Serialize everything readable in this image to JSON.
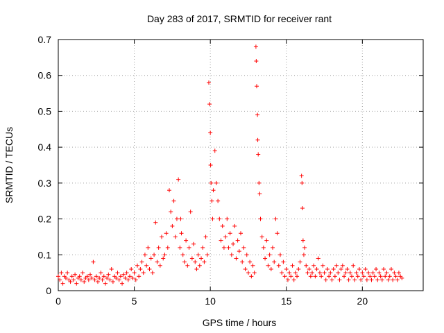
{
  "chart_data": {
    "type": "scatter",
    "title": "Day 283 of 2017, SRMTID for receiver rant",
    "xlabel": "GPS time / hours",
    "ylabel": "SRMTID / TECUs",
    "xlim": [
      0,
      24
    ],
    "ylim": [
      0,
      0.7
    ],
    "xticks": [
      0,
      5,
      10,
      15,
      20
    ],
    "yticks": [
      0,
      0.1,
      0.2,
      0.3,
      0.4,
      0.5,
      0.6,
      0.7
    ],
    "xtick_labels": [
      "0",
      "5",
      "10",
      "15",
      "20"
    ],
    "ytick_labels": [
      "0",
      "0.1",
      "0.2",
      "0.3",
      "0.4",
      "0.5",
      "0.6",
      "0.7"
    ],
    "grid": true,
    "marker": "+",
    "color": "#ff0000",
    "series": [
      {
        "name": "SRMTID",
        "points": [
          [
            0.0,
            0.04
          ],
          [
            0.1,
            0.03
          ],
          [
            0.2,
            0.05
          ],
          [
            0.3,
            0.02
          ],
          [
            0.4,
            0.04
          ],
          [
            0.5,
            0.035
          ],
          [
            0.6,
            0.05
          ],
          [
            0.7,
            0.03
          ],
          [
            0.8,
            0.025
          ],
          [
            0.9,
            0.04
          ],
          [
            1.0,
            0.03
          ],
          [
            1.1,
            0.045
          ],
          [
            1.2,
            0.02
          ],
          [
            1.3,
            0.035
          ],
          [
            1.4,
            0.04
          ],
          [
            1.5,
            0.03
          ],
          [
            1.6,
            0.05
          ],
          [
            1.7,
            0.025
          ],
          [
            1.8,
            0.035
          ],
          [
            1.9,
            0.04
          ],
          [
            2.0,
            0.03
          ],
          [
            2.1,
            0.045
          ],
          [
            2.2,
            0.035
          ],
          [
            2.3,
            0.08
          ],
          [
            2.4,
            0.03
          ],
          [
            2.5,
            0.04
          ],
          [
            2.6,
            0.025
          ],
          [
            2.7,
            0.035
          ],
          [
            2.8,
            0.05
          ],
          [
            2.9,
            0.03
          ],
          [
            3.0,
            0.04
          ],
          [
            3.1,
            0.02
          ],
          [
            3.2,
            0.035
          ],
          [
            3.3,
            0.045
          ],
          [
            3.4,
            0.03
          ],
          [
            3.5,
            0.06
          ],
          [
            3.6,
            0.025
          ],
          [
            3.7,
            0.04
          ],
          [
            3.8,
            0.035
          ],
          [
            3.9,
            0.05
          ],
          [
            4.0,
            0.03
          ],
          [
            4.1,
            0.04
          ],
          [
            4.2,
            0.02
          ],
          [
            4.3,
            0.045
          ],
          [
            4.4,
            0.035
          ],
          [
            4.5,
            0.05
          ],
          [
            4.6,
            0.03
          ],
          [
            4.7,
            0.04
          ],
          [
            4.8,
            0.06
          ],
          [
            4.9,
            0.035
          ],
          [
            5.0,
            0.05
          ],
          [
            5.1,
            0.03
          ],
          [
            5.2,
            0.07
          ],
          [
            5.3,
            0.04
          ],
          [
            5.4,
            0.06
          ],
          [
            5.5,
            0.08
          ],
          [
            5.6,
            0.05
          ],
          [
            5.7,
            0.1
          ],
          [
            5.8,
            0.07
          ],
          [
            5.9,
            0.12
          ],
          [
            6.0,
            0.06
          ],
          [
            6.1,
            0.09
          ],
          [
            6.2,
            0.05
          ],
          [
            6.3,
            0.1
          ],
          [
            6.4,
            0.19
          ],
          [
            6.5,
            0.08
          ],
          [
            6.6,
            0.12
          ],
          [
            6.7,
            0.07
          ],
          [
            6.8,
            0.15
          ],
          [
            6.9,
            0.09
          ],
          [
            7.0,
            0.1
          ],
          [
            7.1,
            0.16
          ],
          [
            7.2,
            0.12
          ],
          [
            7.3,
            0.28
          ],
          [
            7.4,
            0.22
          ],
          [
            7.5,
            0.18
          ],
          [
            7.6,
            0.25
          ],
          [
            7.7,
            0.15
          ],
          [
            7.8,
            0.2
          ],
          [
            7.9,
            0.31
          ],
          [
            8.0,
            0.12
          ],
          [
            8.05,
            0.2
          ],
          [
            8.1,
            0.16
          ],
          [
            8.2,
            0.1
          ],
          [
            8.3,
            0.08
          ],
          [
            8.4,
            0.14
          ],
          [
            8.5,
            0.07
          ],
          [
            8.6,
            0.12
          ],
          [
            8.7,
            0.22
          ],
          [
            8.8,
            0.09
          ],
          [
            8.9,
            0.13
          ],
          [
            9.0,
            0.08
          ],
          [
            9.1,
            0.06
          ],
          [
            9.2,
            0.1
          ],
          [
            9.3,
            0.07
          ],
          [
            9.4,
            0.09
          ],
          [
            9.5,
            0.12
          ],
          [
            9.6,
            0.08
          ],
          [
            9.7,
            0.15
          ],
          [
            9.8,
            0.1
          ],
          [
            9.9,
            0.58
          ],
          [
            9.95,
            0.52
          ],
          [
            10.0,
            0.44
          ],
          [
            10.02,
            0.35
          ],
          [
            10.05,
            0.3
          ],
          [
            10.1,
            0.25
          ],
          [
            10.15,
            0.2
          ],
          [
            10.2,
            0.28
          ],
          [
            10.3,
            0.39
          ],
          [
            10.4,
            0.3
          ],
          [
            10.5,
            0.25
          ],
          [
            10.6,
            0.2
          ],
          [
            10.7,
            0.14
          ],
          [
            10.8,
            0.18
          ],
          [
            10.9,
            0.12
          ],
          [
            11.0,
            0.15
          ],
          [
            11.1,
            0.2
          ],
          [
            11.2,
            0.12
          ],
          [
            11.3,
            0.16
          ],
          [
            11.4,
            0.1
          ],
          [
            11.5,
            0.13
          ],
          [
            11.6,
            0.18
          ],
          [
            11.7,
            0.09
          ],
          [
            11.8,
            0.14
          ],
          [
            11.9,
            0.11
          ],
          [
            12.0,
            0.16
          ],
          [
            12.1,
            0.08
          ],
          [
            12.2,
            0.12
          ],
          [
            12.3,
            0.06
          ],
          [
            12.4,
            0.1
          ],
          [
            12.5,
            0.05
          ],
          [
            12.6,
            0.08
          ],
          [
            12.7,
            0.04
          ],
          [
            12.8,
            0.07
          ],
          [
            12.9,
            0.05
          ],
          [
            13.0,
            0.68
          ],
          [
            13.02,
            0.64
          ],
          [
            13.05,
            0.57
          ],
          [
            13.1,
            0.49
          ],
          [
            13.12,
            0.42
          ],
          [
            13.15,
            0.38
          ],
          [
            13.2,
            0.3
          ],
          [
            13.25,
            0.27
          ],
          [
            13.3,
            0.2
          ],
          [
            13.4,
            0.15
          ],
          [
            13.5,
            0.12
          ],
          [
            13.6,
            0.09
          ],
          [
            13.7,
            0.14
          ],
          [
            13.8,
            0.07
          ],
          [
            13.9,
            0.1
          ],
          [
            14.0,
            0.06
          ],
          [
            14.1,
            0.12
          ],
          [
            14.2,
            0.08
          ],
          [
            14.3,
            0.2
          ],
          [
            14.4,
            0.16
          ],
          [
            14.5,
            0.07
          ],
          [
            14.6,
            0.1
          ],
          [
            14.7,
            0.05
          ],
          [
            14.8,
            0.08
          ],
          [
            14.9,
            0.04
          ],
          [
            15.0,
            0.06
          ],
          [
            15.1,
            0.03
          ],
          [
            15.2,
            0.05
          ],
          [
            15.3,
            0.04
          ],
          [
            15.4,
            0.07
          ],
          [
            15.5,
            0.03
          ],
          [
            15.6,
            0.05
          ],
          [
            15.7,
            0.04
          ],
          [
            15.8,
            0.06
          ],
          [
            15.9,
            0.08
          ],
          [
            16.0,
            0.32
          ],
          [
            16.03,
            0.3
          ],
          [
            16.06,
            0.23
          ],
          [
            16.1,
            0.14
          ],
          [
            16.15,
            0.1
          ],
          [
            16.2,
            0.12
          ],
          [
            16.3,
            0.07
          ],
          [
            16.4,
            0.05
          ],
          [
            16.5,
            0.06
          ],
          [
            16.6,
            0.04
          ],
          [
            16.7,
            0.05
          ],
          [
            16.8,
            0.07
          ],
          [
            16.9,
            0.04
          ],
          [
            17.0,
            0.06
          ],
          [
            17.1,
            0.09
          ],
          [
            17.2,
            0.05
          ],
          [
            17.3,
            0.04
          ],
          [
            17.4,
            0.07
          ],
          [
            17.5,
            0.05
          ],
          [
            17.6,
            0.03
          ],
          [
            17.7,
            0.06
          ],
          [
            17.8,
            0.04
          ],
          [
            17.9,
            0.05
          ],
          [
            18.0,
            0.03
          ],
          [
            18.1,
            0.06
          ],
          [
            18.2,
            0.04
          ],
          [
            18.3,
            0.07
          ],
          [
            18.4,
            0.05
          ],
          [
            18.5,
            0.03
          ],
          [
            18.6,
            0.06
          ],
          [
            18.7,
            0.07
          ],
          [
            18.8,
            0.04
          ],
          [
            18.9,
            0.05
          ],
          [
            19.0,
            0.06
          ],
          [
            19.1,
            0.03
          ],
          [
            19.2,
            0.05
          ],
          [
            19.3,
            0.04
          ],
          [
            19.4,
            0.07
          ],
          [
            19.5,
            0.03
          ],
          [
            19.6,
            0.05
          ],
          [
            19.7,
            0.04
          ],
          [
            19.8,
            0.06
          ],
          [
            19.9,
            0.03
          ],
          [
            20.0,
            0.05
          ],
          [
            20.1,
            0.04
          ],
          [
            20.2,
            0.06
          ],
          [
            20.3,
            0.03
          ],
          [
            20.4,
            0.05
          ],
          [
            20.5,
            0.04
          ],
          [
            20.6,
            0.03
          ],
          [
            20.7,
            0.05
          ],
          [
            20.8,
            0.04
          ],
          [
            20.9,
            0.06
          ],
          [
            21.0,
            0.03
          ],
          [
            21.1,
            0.05
          ],
          [
            21.2,
            0.04
          ],
          [
            21.3,
            0.03
          ],
          [
            21.4,
            0.06
          ],
          [
            21.5,
            0.04
          ],
          [
            21.6,
            0.05
          ],
          [
            21.7,
            0.03
          ],
          [
            21.8,
            0.04
          ],
          [
            21.9,
            0.06
          ],
          [
            22.0,
            0.03
          ],
          [
            22.1,
            0.05
          ],
          [
            22.2,
            0.04
          ],
          [
            22.3,
            0.03
          ],
          [
            22.4,
            0.05
          ],
          [
            22.5,
            0.04
          ],
          [
            22.6,
            0.035
          ]
        ]
      }
    ]
  }
}
